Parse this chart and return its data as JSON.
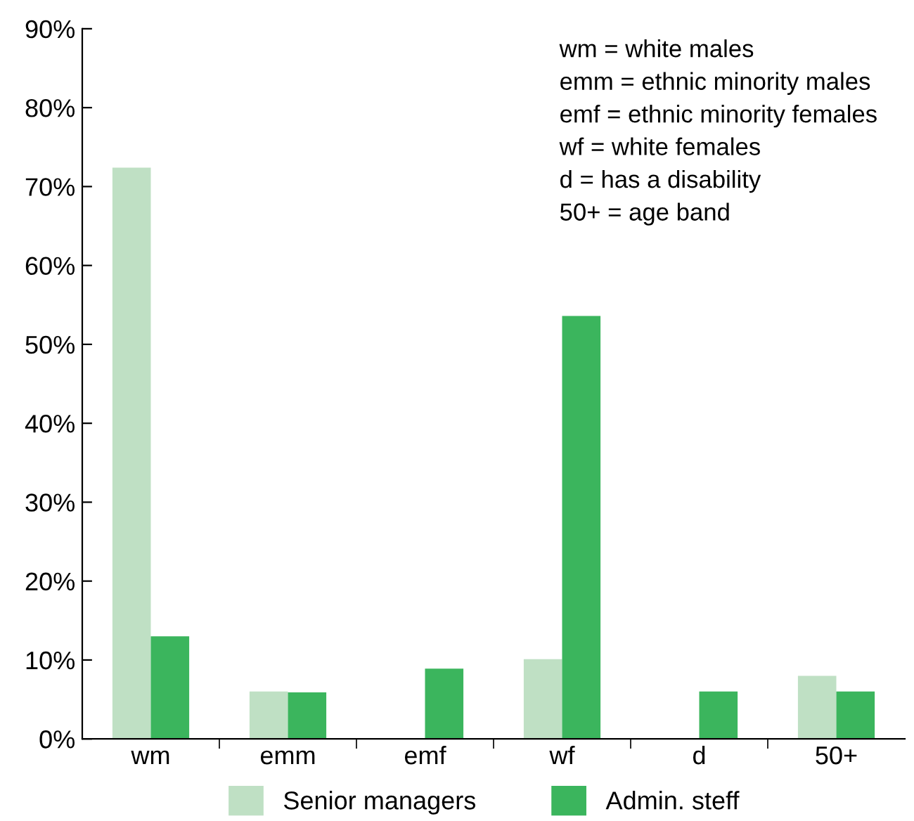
{
  "chart_data": {
    "type": "bar",
    "categories": [
      "wm",
      "emm",
      "emf",
      "wf",
      "d",
      "50+"
    ],
    "series": [
      {
        "name": "Senior managers",
        "color": "#bfe0c4",
        "values": [
          72.4,
          6.0,
          0,
          10.1,
          0,
          8.0
        ]
      },
      {
        "name": "Admin. steff",
        "color": "#3bb55d",
        "values": [
          13.0,
          5.9,
          8.9,
          53.6,
          6.0,
          6.0
        ]
      }
    ],
    "ylim": [
      0,
      90
    ],
    "yticks": [
      {
        "value": 0,
        "label": "0%"
      },
      {
        "value": 10,
        "label": "10%"
      },
      {
        "value": 20,
        "label": "20%"
      },
      {
        "value": 30,
        "label": "30%"
      },
      {
        "value": 40,
        "label": "40%"
      },
      {
        "value": 50,
        "label": "50%"
      },
      {
        "value": 60,
        "label": "60%"
      },
      {
        "value": 70,
        "label": "70%"
      },
      {
        "value": 80,
        "label": "80%"
      },
      {
        "value": 90,
        "label": "90%"
      }
    ],
    "annotations": [
      "wm = white males",
      "emm = ethnic minority males",
      "emf = ethnic minority females",
      "wf = white females",
      "d = has a disability",
      "50+ = age band"
    ],
    "legend": "bottom",
    "grid": false
  }
}
